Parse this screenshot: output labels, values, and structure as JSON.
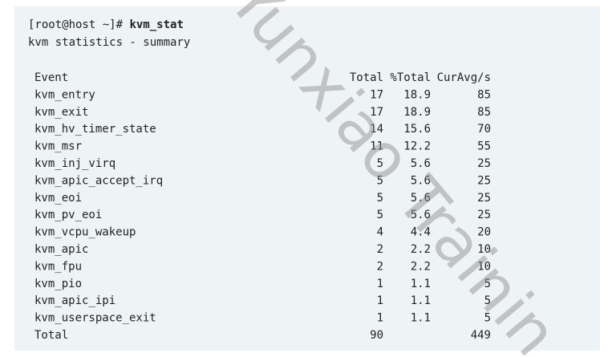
{
  "terminal": {
    "prompt": "[root@host ~]# ",
    "command": "kvm_stat",
    "subtitle": "kvm statistics - summary"
  },
  "table": {
    "headers": [
      "Event",
      "Total",
      "%Total",
      "CurAvg/s"
    ],
    "rows": [
      [
        "kvm_entry",
        17,
        18.9,
        85
      ],
      [
        "kvm_exit",
        17,
        18.9,
        85
      ],
      [
        "kvm_hv_timer_state",
        14,
        15.6,
        70
      ],
      [
        "kvm_msr",
        11,
        12.2,
        55
      ],
      [
        "kvm_inj_virq",
        5,
        5.6,
        25
      ],
      [
        "kvm_apic_accept_irq",
        5,
        5.6,
        25
      ],
      [
        "kvm_eoi",
        5,
        5.6,
        25
      ],
      [
        "kvm_pv_eoi",
        5,
        5.6,
        25
      ],
      [
        "kvm_vcpu_wakeup",
        4,
        4.4,
        20
      ],
      [
        "kvm_apic",
        2,
        2.2,
        10
      ],
      [
        "kvm_fpu",
        2,
        2.2,
        10
      ],
      [
        "kvm_pio",
        1,
        1.1,
        5
      ],
      [
        "kvm_apic_ipi",
        1,
        1.1,
        5
      ],
      [
        "kvm_userspace_exit",
        1,
        1.1,
        5
      ]
    ],
    "total": {
      "label": "Total",
      "total": 90,
      "cur_avg": 449
    }
  },
  "watermark": "Yunxiao Trainin"
}
